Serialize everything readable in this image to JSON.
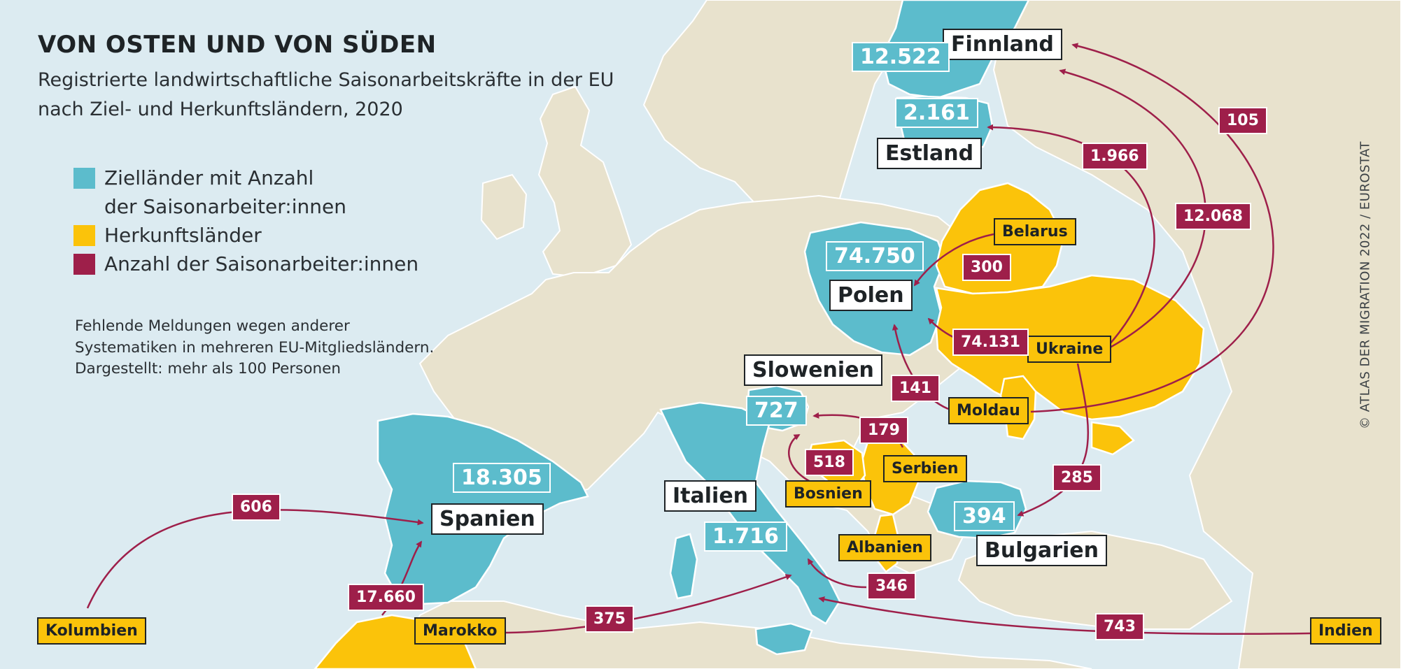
{
  "header": {
    "title": "VON OSTEN UND VON SÜDEN",
    "subtitle_line1": "Registrierte landwirtschaftliche Saisonarbeitskräfte in der EU",
    "subtitle_line2": "nach Ziel- und Herkunftsländern, 2020"
  },
  "legend": {
    "destination_line1": "Zielländer mit Anzahl",
    "destination_line2": "der Saisonarbeiter:innen",
    "origin": "Herkunftsländer",
    "count": "Anzahl der Saisonarbeiter:innen"
  },
  "note": {
    "line1": "Fehlende Meldungen wegen anderer",
    "line2": "Systematiken in mehreren EU-Mitgliedsländern.",
    "line3": "Dargestellt: mehr als 100 Personen"
  },
  "credit": "© ATLAS DER MIGRATION 2022 / EUROSTAT",
  "colors": {
    "sea": "#dcebf1",
    "land": "#e8e2cd",
    "destination": "#5cbccc",
    "origin": "#fbc30a",
    "flow": "#9e1f4a"
  },
  "destinations": {
    "finnland": {
      "name": "Finnland",
      "total": "12.522"
    },
    "estland": {
      "name": "Estland",
      "total": "2.161"
    },
    "polen": {
      "name": "Polen",
      "total": "74.750"
    },
    "slowenien": {
      "name": "Slowenien",
      "total": "727"
    },
    "spanien": {
      "name": "Spanien",
      "total": "18.305"
    },
    "italien": {
      "name": "Italien",
      "total": "1.716"
    },
    "bulgarien": {
      "name": "Bulgarien",
      "total": "394"
    }
  },
  "origins": {
    "belarus": "Belarus",
    "ukraine": "Ukraine",
    "moldau": "Moldau",
    "serbien": "Serbien",
    "bosnien": "Bosnien",
    "albanien": "Albanien",
    "kolumbien": "Kolumbien",
    "marokko": "Marokko",
    "indien": "Indien"
  },
  "flows": [
    {
      "from": "Belarus",
      "to": "Polen",
      "value": "300"
    },
    {
      "from": "Ukraine",
      "to": "Polen",
      "value": "74.131"
    },
    {
      "from": "Ukraine",
      "to": "Finnland",
      "value": "12.068"
    },
    {
      "from": "Ukraine",
      "to": "Estland",
      "value": "1.966"
    },
    {
      "from": "Ukraine",
      "to": "Bulgarien",
      "value": "285"
    },
    {
      "from": "Moldau",
      "to": "Finnland",
      "value": "105"
    },
    {
      "from": "Moldau",
      "to": "Polen",
      "value": "141"
    },
    {
      "from": "Serbien",
      "to": "Slowenien",
      "value": "179"
    },
    {
      "from": "Bosnien",
      "to": "Slowenien",
      "value": "518"
    },
    {
      "from": "Albanien",
      "to": "Italien",
      "value": "346"
    },
    {
      "from": "Kolumbien",
      "to": "Spanien",
      "value": "606"
    },
    {
      "from": "Marokko",
      "to": "Spanien",
      "value": "17.660"
    },
    {
      "from": "Marokko",
      "to": "Italien",
      "value": "375"
    },
    {
      "from": "Indien",
      "to": "Italien",
      "value": "743"
    }
  ]
}
